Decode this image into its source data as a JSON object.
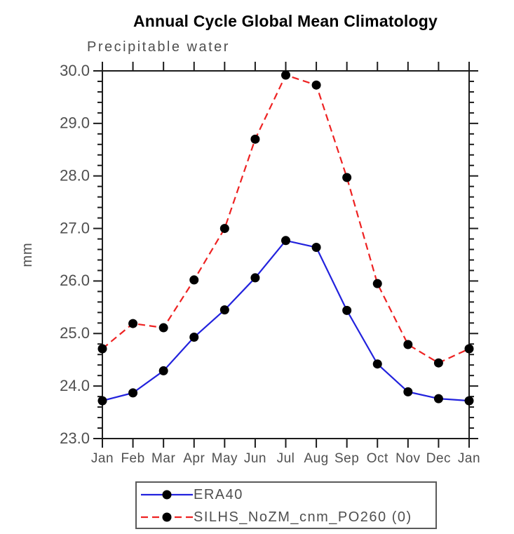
{
  "header": {
    "title": "Annual Cycle Global Mean Climatology",
    "subtitle": "Precipitable water"
  },
  "chart_data": {
    "type": "line",
    "title": "Annual Cycle Global Mean Climatology",
    "subtitle": "Precipitable water",
    "xlabel": "",
    "ylabel": "mm",
    "categories": [
      "Jan",
      "Feb",
      "Mar",
      "Apr",
      "May",
      "Jun",
      "Jul",
      "Aug",
      "Sep",
      "Oct",
      "Nov",
      "Dec",
      "Jan"
    ],
    "ylim": [
      23.0,
      30.0
    ],
    "yticks": [
      23.0,
      24.0,
      25.0,
      26.0,
      27.0,
      28.0,
      29.0,
      30.0
    ],
    "ytick_labels": [
      "23.0",
      "24.0",
      "25.0",
      "26.0",
      "27.0",
      "28.0",
      "29.0",
      "30.0"
    ],
    "y_minor_step": 0.2,
    "grid": false,
    "legend_position": "bottom",
    "series": [
      {
        "id": "era40",
        "name": "ERA40",
        "color": "#2222dd",
        "line_style": "solid",
        "marker": "circle",
        "marker_color": "#000000",
        "values": [
          23.72,
          23.87,
          24.29,
          24.93,
          25.45,
          26.06,
          26.77,
          26.64,
          25.44,
          24.42,
          23.89,
          23.76,
          23.72
        ]
      },
      {
        "id": "silhs",
        "name": "SILHS_NoZM_cnm_PO260 (0)",
        "color": "#ee2222",
        "line_style": "dashed",
        "marker": "circle",
        "marker_color": "#000000",
        "values": [
          24.71,
          25.19,
          25.11,
          26.02,
          27.0,
          28.7,
          29.92,
          29.73,
          27.97,
          25.95,
          24.79,
          24.44,
          24.71
        ]
      }
    ],
    "colors": {
      "axis": "#1c1c1c",
      "tick_text": "#4f4f4f",
      "title_text": "#000000"
    }
  }
}
